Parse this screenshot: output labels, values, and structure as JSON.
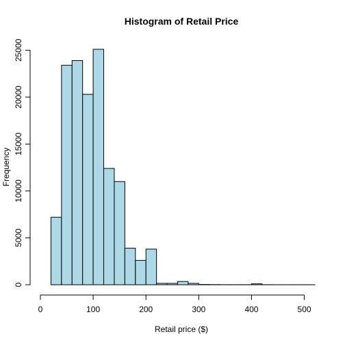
{
  "chart_data": {
    "type": "bar",
    "title": "Histogram of Retail Price",
    "xlabel": "Retail price ($)",
    "ylabel": "Frequency",
    "bin_edges": [
      20,
      40,
      60,
      80,
      100,
      120,
      140,
      160,
      180,
      200,
      220,
      240,
      260,
      280,
      300,
      320,
      340,
      360,
      380,
      400,
      420,
      440,
      460,
      480,
      500,
      520
    ],
    "values": [
      7200,
      23400,
      23900,
      20300,
      25100,
      12400,
      11000,
      3900,
      2600,
      3800,
      150,
      150,
      350,
      150,
      30,
      20,
      10,
      10,
      10,
      100,
      10,
      5,
      5,
      5,
      5
    ],
    "xlim": [
      0,
      520
    ],
    "ylim": [
      0,
      25100
    ],
    "x_ticks": [
      0,
      100,
      200,
      300,
      400,
      500
    ],
    "y_ticks": [
      0,
      5000,
      10000,
      15000,
      20000,
      25000
    ],
    "bar_color": "#add8e6",
    "grid": false
  }
}
